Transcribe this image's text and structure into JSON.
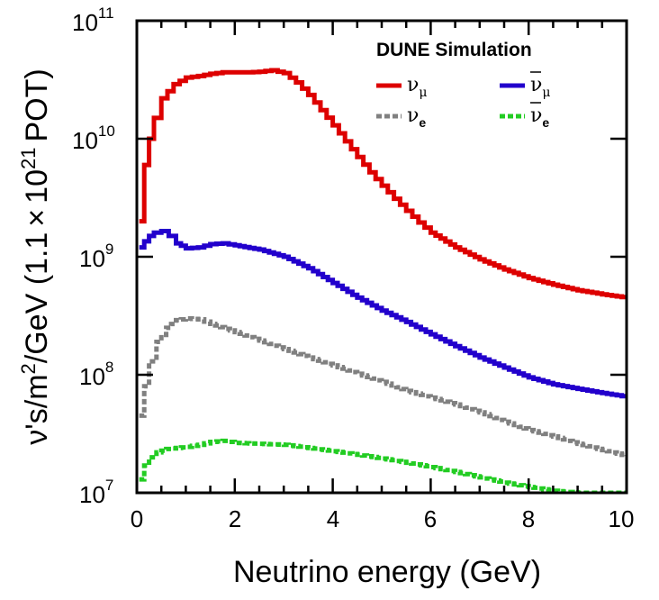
{
  "chart_data": {
    "type": "line",
    "title": "",
    "xlabel": "Neutrino energy (GeV)",
    "ylabel": "ν's/m²/GeV (1.1 × 10²¹ POT)",
    "ylabel_parts": {
      "a": "ν's/m",
      "b": "2",
      "c": "/GeV (1.1",
      "d": "×",
      "e": "10",
      "f": "21",
      "g": "POT)"
    },
    "xlim": [
      0,
      10
    ],
    "ylim": [
      10000000,
      100000000000
    ],
    "yscale": "log",
    "x_ticks": [
      "0",
      "2",
      "4",
      "6",
      "8",
      "10"
    ],
    "y_ticks": [
      {
        "base": "10",
        "exp": "7"
      },
      {
        "base": "10",
        "exp": "8"
      },
      {
        "base": "10",
        "exp": "9"
      },
      {
        "base": "10",
        "exp": "10"
      },
      {
        "base": "10",
        "exp": "11"
      }
    ],
    "legend": {
      "title": "DUNE Simulation",
      "position": "top-right"
    },
    "series": [
      {
        "name": "ν_μ",
        "symbol": "ν",
        "sub": "μ",
        "bar": false,
        "color": "#dd0000",
        "style": "solid",
        "x": [
          0.05,
          0.15,
          0.25,
          0.35,
          0.5,
          0.75,
          1.0,
          1.25,
          1.5,
          1.75,
          2.0,
          2.25,
          2.5,
          2.75,
          3.0,
          3.25,
          3.5,
          3.75,
          4.0,
          4.25,
          4.5,
          4.75,
          5.0,
          5.25,
          5.5,
          5.75,
          6.0,
          6.5,
          7.0,
          7.5,
          8.0,
          8.5,
          9.0,
          9.5,
          10.0
        ],
        "y": [
          2000000000.0,
          6000000000.0,
          10000000000.0,
          15000000000.0,
          22000000000.0,
          29000000000.0,
          33000000000.0,
          34000000000.0,
          35500000000.0,
          36500000000.0,
          36500000000.0,
          36500000000.0,
          37000000000.0,
          38000000000.0,
          36000000000.0,
          30000000000.0,
          23500000000.0,
          17500000000.0,
          13000000000.0,
          9500000000.0,
          7000000000.0,
          5200000000.0,
          4000000000.0,
          3100000000.0,
          2450000000.0,
          1950000000.0,
          1600000000.0,
          1200000000.0,
          950000000.0,
          780000000.0,
          660000000.0,
          580000000.0,
          520000000.0,
          480000000.0,
          450000000.0
        ]
      },
      {
        "name": "ν̄_μ",
        "symbol": "ν",
        "sub": "μ",
        "bar": true,
        "color": "#2200cc",
        "style": "solid",
        "x": [
          0.05,
          0.15,
          0.25,
          0.35,
          0.5,
          0.65,
          0.8,
          1.0,
          1.25,
          1.5,
          1.75,
          2.0,
          2.5,
          3.0,
          3.5,
          4.0,
          4.5,
          5.0,
          5.5,
          6.0,
          6.5,
          7.0,
          7.5,
          8.0,
          8.5,
          9.0,
          9.5,
          10.0
        ],
        "y": [
          1200000000.0,
          1350000000.0,
          1500000000.0,
          1600000000.0,
          1650000000.0,
          1500000000.0,
          1300000000.0,
          1180000000.0,
          1200000000.0,
          1280000000.0,
          1300000000.0,
          1250000000.0,
          1150000000.0,
          1000000000.0,
          800000000.0,
          600000000.0,
          450000000.0,
          350000000.0,
          280000000.0,
          220000000.0,
          175000000.0,
          140000000.0,
          115000000.0,
          95000000.0,
          83000000.0,
          76000000.0,
          70000000.0,
          65000000.0
        ]
      },
      {
        "name": "ν_e",
        "symbol": "ν",
        "sub": "e",
        "bar": false,
        "color": "#808080",
        "style": "dotted",
        "x": [
          0.05,
          0.15,
          0.25,
          0.4,
          0.6,
          0.8,
          1.0,
          1.25,
          1.5,
          2.0,
          2.5,
          3.0,
          3.5,
          4.0,
          4.5,
          5.0,
          5.5,
          6.0,
          6.5,
          7.0,
          7.5,
          8.0,
          8.5,
          9.0,
          9.5,
          10.0
        ],
        "y": [
          45000000.0,
          80000000.0,
          130000000.0,
          190000000.0,
          250000000.0,
          290000000.0,
          300000000.0,
          295000000.0,
          270000000.0,
          230000000.0,
          195000000.0,
          165000000.0,
          140000000.0,
          120000000.0,
          102000000.0,
          87000000.0,
          73000000.0,
          64000000.0,
          56000000.0,
          48000000.0,
          40000000.0,
          34000000.0,
          30000000.0,
          26000000.0,
          23000000.0,
          20500000.0
        ]
      },
      {
        "name": "ν̄_e",
        "symbol": "ν",
        "sub": "e",
        "bar": true,
        "color": "#22cc22",
        "style": "dotted",
        "x": [
          0.05,
          0.15,
          0.25,
          0.4,
          0.6,
          0.8,
          1.0,
          1.25,
          1.5,
          1.75,
          2.0,
          2.5,
          3.0,
          3.5,
          4.0,
          4.5,
          5.0,
          5.5,
          6.0,
          6.5,
          7.0,
          7.5,
          8.0,
          8.5,
          9.0,
          9.5,
          10.0
        ],
        "y": [
          13000000.0,
          17000000.0,
          20000000.0,
          22000000.0,
          23500000.0,
          24000000.0,
          24500000.0,
          25500000.0,
          27000000.0,
          27500000.0,
          26500000.0,
          26000000.0,
          25500000.0,
          24000000.0,
          22500000.0,
          21000000.0,
          19500000.0,
          18000000.0,
          16500000.0,
          15000000.0,
          13500000.0,
          12200000.0,
          11200000.0,
          10400000.0,
          10000000.0,
          10000000.0,
          10000000.0
        ]
      }
    ]
  }
}
